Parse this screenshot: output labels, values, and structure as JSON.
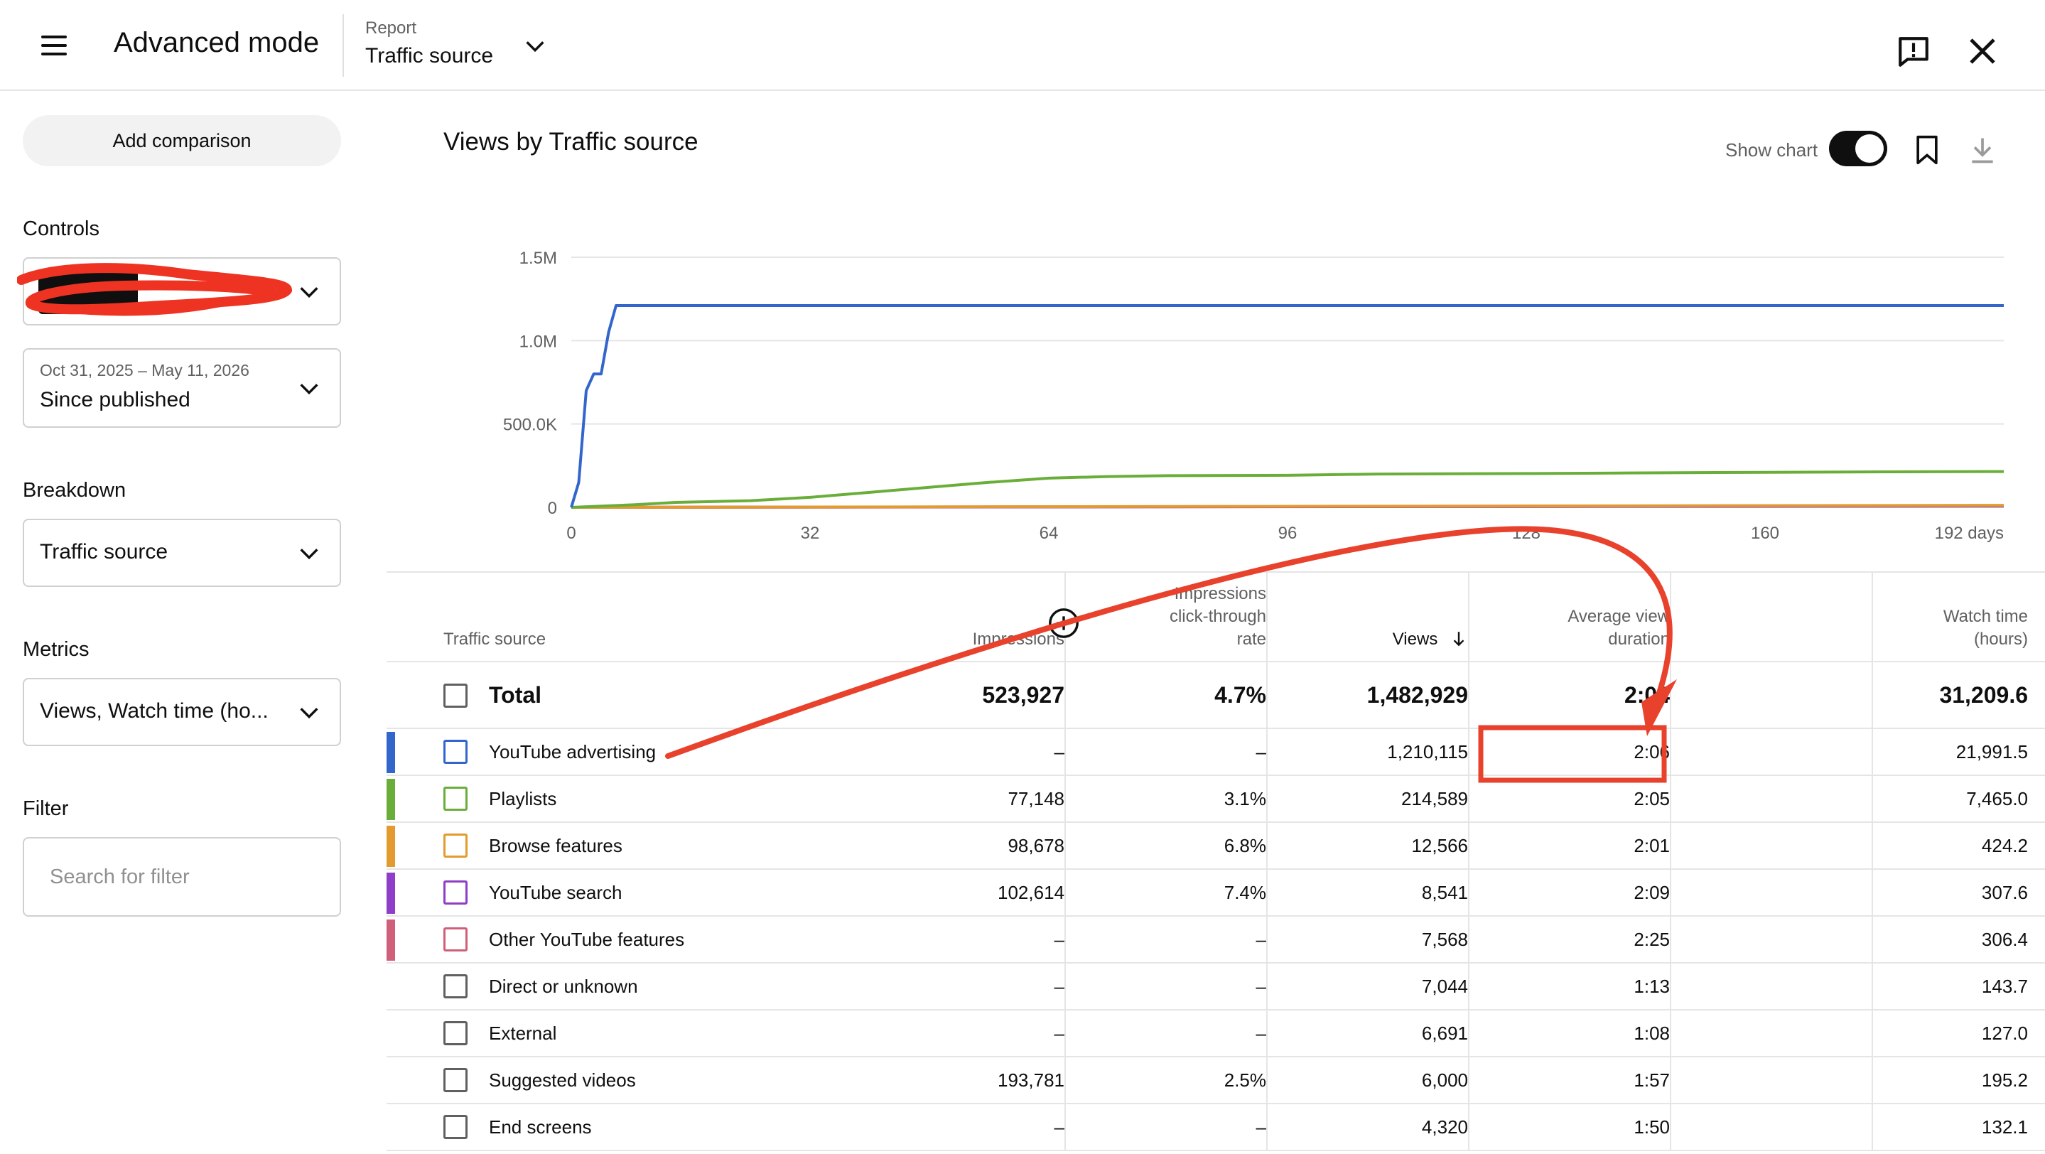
{
  "header": {
    "title": "Advanced mode",
    "report_label": "Report",
    "report_value": "Traffic source"
  },
  "sidebar": {
    "add_comparison": "Add comparison",
    "controls_label": "Controls",
    "date_range": "Oct 31, 2025 – May 11, 2026",
    "date_preset": "Since published",
    "breakdown_label": "Breakdown",
    "breakdown_value": "Traffic source",
    "metrics_label": "Metrics",
    "metrics_value": "Views, Watch time (ho...",
    "filter_label": "Filter",
    "filter_placeholder": "Search for filter"
  },
  "chart": {
    "title": "Views by Traffic source",
    "show_chart_label": "Show chart",
    "show_chart_on": true
  },
  "chart_data": {
    "type": "line",
    "title": "Views by Traffic source",
    "xlim": [
      0,
      192
    ],
    "ylim": [
      0,
      1500000
    ],
    "x_ticks": [
      "0",
      "32",
      "64",
      "96",
      "128",
      "160",
      "192 days"
    ],
    "y_ticks": [
      "0",
      "500.0K",
      "1.0M",
      "1.5M"
    ],
    "grid": true,
    "series": [
      {
        "name": "YouTube advertising",
        "color": "#3366cc",
        "x": [
          0,
          1,
          2,
          3,
          4,
          5,
          6,
          192
        ],
        "y": [
          0,
          150000,
          700000,
          800000,
          800000,
          1050000,
          1210115,
          1210115
        ]
      },
      {
        "name": "Playlists",
        "color": "#6aae3a",
        "x": [
          0,
          8,
          14,
          24,
          32,
          40,
          48,
          56,
          64,
          72,
          80,
          96,
          108,
          128,
          140,
          160,
          176,
          192
        ],
        "y": [
          0,
          15000,
          30000,
          40000,
          60000,
          90000,
          120000,
          150000,
          175000,
          185000,
          190000,
          192000,
          200000,
          203000,
          206000,
          210000,
          213000,
          214589
        ]
      },
      {
        "name": "Browse features",
        "color": "#e39b2f",
        "x": [
          0,
          192
        ],
        "y": [
          0,
          12566
        ]
      },
      {
        "name": "YouTube search",
        "color": "#8e3ec8",
        "x": [
          0,
          192
        ],
        "y": [
          0,
          8541
        ]
      },
      {
        "name": "Other YouTube features",
        "color": "#d05f7a",
        "x": [
          0,
          192
        ],
        "y": [
          0,
          7568
        ]
      }
    ]
  },
  "table": {
    "headers": {
      "source": "Traffic source",
      "impressions": "Impressions",
      "ctr_line1": "Impressions",
      "ctr_line2": "click-through",
      "ctr_line3": "rate",
      "views": "Views",
      "avd_line1": "Average view",
      "avd_line2": "duration",
      "watch_line1": "Watch time",
      "watch_line2": "(hours)"
    },
    "total": {
      "label": "Total",
      "impressions": "523,927",
      "ctr": "4.7%",
      "views": "1,482,929",
      "avd": "2:04",
      "watch": "31,209.6"
    },
    "rows": [
      {
        "label": "YouTube advertising",
        "color": "#3366cc",
        "impressions": "–",
        "ctr": "–",
        "views": "1,210,115",
        "avd": "2:06",
        "watch": "21,991.5"
      },
      {
        "label": "Playlists",
        "color": "#6aae3a",
        "impressions": "77,148",
        "ctr": "3.1%",
        "views": "214,589",
        "avd": "2:05",
        "watch": "7,465.0"
      },
      {
        "label": "Browse features",
        "color": "#e39b2f",
        "impressions": "98,678",
        "ctr": "6.8%",
        "views": "12,566",
        "avd": "2:01",
        "watch": "424.2"
      },
      {
        "label": "YouTube search",
        "color": "#8e3ec8",
        "impressions": "102,614",
        "ctr": "7.4%",
        "views": "8,541",
        "avd": "2:09",
        "watch": "307.6"
      },
      {
        "label": "Other YouTube features",
        "color": "#d05f7a",
        "impressions": "–",
        "ctr": "–",
        "views": "7,568",
        "avd": "2:25",
        "watch": "306.4"
      },
      {
        "label": "Direct or unknown",
        "color": "",
        "impressions": "–",
        "ctr": "–",
        "views": "7,044",
        "avd": "1:13",
        "watch": "143.7"
      },
      {
        "label": "External",
        "color": "",
        "impressions": "–",
        "ctr": "–",
        "views": "6,691",
        "avd": "1:08",
        "watch": "127.0"
      },
      {
        "label": "Suggested videos",
        "color": "",
        "impressions": "193,781",
        "ctr": "2.5%",
        "views": "6,000",
        "avd": "1:57",
        "watch": "195.2"
      },
      {
        "label": "End screens",
        "color": "",
        "impressions": "–",
        "ctr": "–",
        "views": "4,320",
        "avd": "1:50",
        "watch": "132.1"
      }
    ]
  },
  "annotation": {
    "color": "#e8412c"
  }
}
